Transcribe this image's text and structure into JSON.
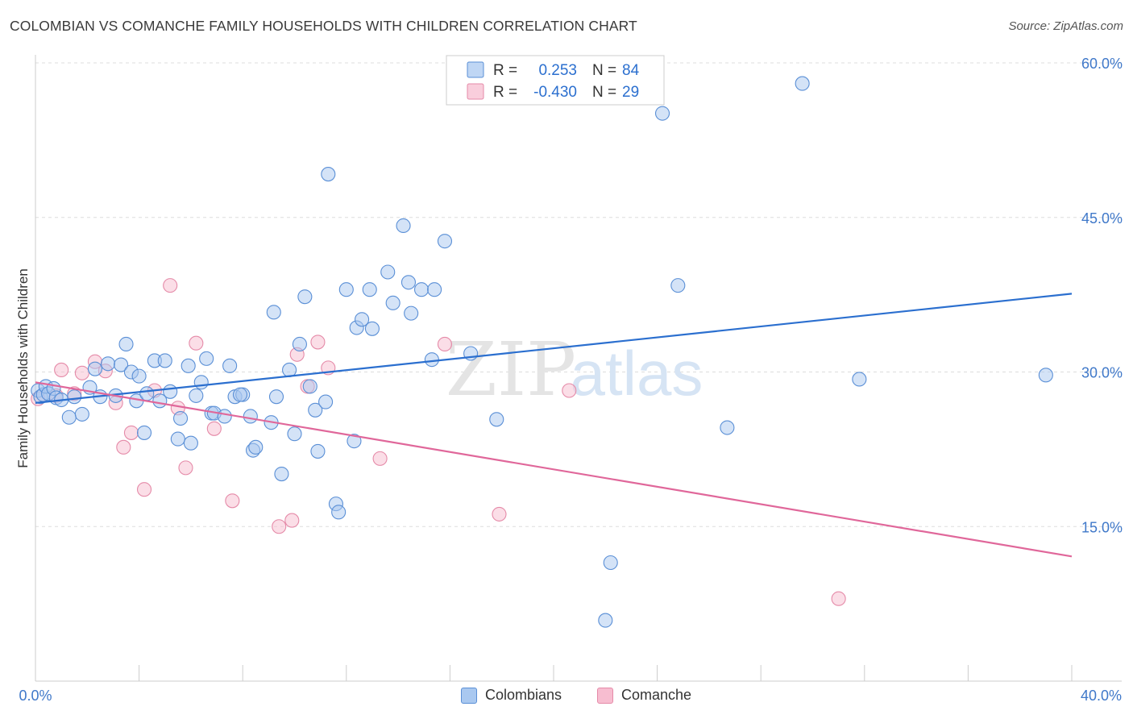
{
  "header": {
    "title": "COLOMBIAN VS COMANCHE FAMILY HOUSEHOLDS WITH CHILDREN CORRELATION CHART",
    "source": "Source: ZipAtlas.com"
  },
  "watermark": {
    "zip": "ZIP",
    "atlas": "atlas"
  },
  "colors": {
    "colombians_fill": "#a9c8f0",
    "colombians_stroke": "#5a8fd6",
    "colombians_line": "#2b6fcf",
    "comanche_fill": "#f7bdd0",
    "comanche_stroke": "#e58aa8",
    "comanche_line": "#e0679a",
    "tick_label": "#3f78c9",
    "grid": "#dddddd"
  },
  "stats_legend": {
    "rows": [
      {
        "r_label": "R =",
        "r_value": "0.253",
        "n_label": "N =",
        "n_value": "84"
      },
      {
        "r_label": "R =",
        "r_value": "-0.430",
        "n_label": "N =",
        "n_value": "29"
      }
    ]
  },
  "chart_data": {
    "type": "scatter",
    "title": "COLOMBIAN VS COMANCHE FAMILY HOUSEHOLDS WITH CHILDREN CORRELATION CHART",
    "xlabel": "",
    "ylabel": "Family Households with Children",
    "xlim": [
      0,
      40
    ],
    "ylim": [
      0,
      60
    ],
    "x_tick_labels": [
      "0.0%",
      "40.0%"
    ],
    "y_ticks": [
      15,
      30,
      45,
      60
    ],
    "y_tick_labels": [
      "15.0%",
      "30.0%",
      "45.0%",
      "60.0%"
    ],
    "grid": true,
    "legend_position": "bottom",
    "series": [
      {
        "name": "Colombians",
        "r": 0.253,
        "n": 84,
        "trend": [
          [
            0,
            27.0
          ],
          [
            40,
            37.6
          ]
        ],
        "points": [
          [
            0.1,
            28.2
          ],
          [
            0.2,
            27.6
          ],
          [
            0.3,
            27.8
          ],
          [
            0.4,
            28.6
          ],
          [
            0.5,
            27.9
          ],
          [
            0.7,
            28.4
          ],
          [
            0.8,
            27.5
          ],
          [
            1.0,
            27.3
          ],
          [
            1.3,
            25.6
          ],
          [
            1.5,
            27.6
          ],
          [
            1.8,
            25.9
          ],
          [
            2.1,
            28.5
          ],
          [
            2.5,
            27.6
          ],
          [
            2.3,
            30.3
          ],
          [
            2.8,
            30.8
          ],
          [
            3.1,
            27.7
          ],
          [
            3.3,
            30.7
          ],
          [
            3.5,
            32.7
          ],
          [
            3.7,
            30.0
          ],
          [
            3.9,
            27.2
          ],
          [
            4.0,
            29.6
          ],
          [
            4.2,
            24.1
          ],
          [
            4.3,
            27.9
          ],
          [
            4.6,
            31.1
          ],
          [
            4.8,
            27.2
          ],
          [
            5.0,
            31.1
          ],
          [
            5.2,
            28.1
          ],
          [
            5.5,
            23.5
          ],
          [
            5.6,
            25.5
          ],
          [
            5.9,
            30.6
          ],
          [
            6.0,
            23.1
          ],
          [
            6.2,
            27.7
          ],
          [
            6.4,
            29.0
          ],
          [
            6.6,
            31.3
          ],
          [
            6.8,
            26.0
          ],
          [
            6.9,
            26.0
          ],
          [
            7.3,
            25.7
          ],
          [
            7.5,
            30.6
          ],
          [
            7.7,
            27.6
          ],
          [
            8.0,
            27.8
          ],
          [
            7.9,
            27.8
          ],
          [
            8.3,
            25.7
          ],
          [
            8.4,
            22.4
          ],
          [
            8.5,
            22.7
          ],
          [
            9.1,
            25.1
          ],
          [
            9.2,
            35.8
          ],
          [
            9.3,
            27.6
          ],
          [
            9.5,
            20.1
          ],
          [
            9.8,
            30.2
          ],
          [
            10.0,
            24.0
          ],
          [
            10.2,
            32.7
          ],
          [
            10.4,
            37.3
          ],
          [
            10.6,
            28.6
          ],
          [
            10.8,
            26.3
          ],
          [
            10.9,
            22.3
          ],
          [
            11.2,
            27.1
          ],
          [
            11.3,
            49.2
          ],
          [
            11.6,
            17.2
          ],
          [
            11.7,
            16.4
          ],
          [
            12.0,
            38.0
          ],
          [
            12.3,
            23.3
          ],
          [
            12.4,
            34.3
          ],
          [
            12.6,
            35.1
          ],
          [
            12.9,
            38.0
          ],
          [
            13.0,
            34.2
          ],
          [
            13.6,
            39.7
          ],
          [
            13.8,
            36.7
          ],
          [
            14.2,
            44.2
          ],
          [
            14.4,
            38.7
          ],
          [
            14.5,
            35.7
          ],
          [
            14.9,
            38.0
          ],
          [
            15.3,
            31.2
          ],
          [
            15.4,
            38.0
          ],
          [
            15.8,
            42.7
          ],
          [
            16.8,
            31.8
          ],
          [
            17.8,
            25.4
          ],
          [
            22.0,
            5.9
          ],
          [
            22.2,
            11.5
          ],
          [
            24.2,
            55.1
          ],
          [
            24.8,
            38.4
          ],
          [
            26.7,
            24.6
          ],
          [
            29.6,
            58.0
          ],
          [
            31.8,
            29.3
          ],
          [
            39.0,
            29.7
          ]
        ]
      },
      {
        "name": "Comanche",
        "r": -0.43,
        "n": 29,
        "trend": [
          [
            0,
            29.0
          ],
          [
            40,
            12.1
          ]
        ],
        "points": [
          [
            0.1,
            27.4
          ],
          [
            0.8,
            27.7
          ],
          [
            1.0,
            30.2
          ],
          [
            1.5,
            27.9
          ],
          [
            1.8,
            29.9
          ],
          [
            2.3,
            31.0
          ],
          [
            2.7,
            30.1
          ],
          [
            3.1,
            27.0
          ],
          [
            3.4,
            22.7
          ],
          [
            3.7,
            24.1
          ],
          [
            4.2,
            18.6
          ],
          [
            4.6,
            28.2
          ],
          [
            5.2,
            38.4
          ],
          [
            5.5,
            26.5
          ],
          [
            5.8,
            20.7
          ],
          [
            6.2,
            32.8
          ],
          [
            6.9,
            24.5
          ],
          [
            7.6,
            17.5
          ],
          [
            9.4,
            15.0
          ],
          [
            9.9,
            15.6
          ],
          [
            10.1,
            31.7
          ],
          [
            10.5,
            28.6
          ],
          [
            10.9,
            32.9
          ],
          [
            11.3,
            30.4
          ],
          [
            13.3,
            21.6
          ],
          [
            15.8,
            32.7
          ],
          [
            17.9,
            16.2
          ],
          [
            20.6,
            28.2
          ],
          [
            31.0,
            8.0
          ]
        ]
      }
    ]
  }
}
